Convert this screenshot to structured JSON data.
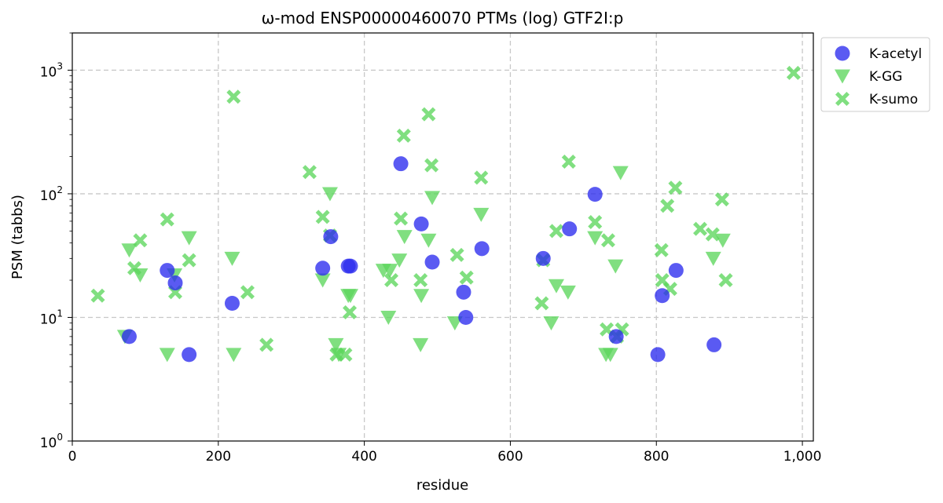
{
  "chart_data": {
    "type": "scatter",
    "title": "ω-mod ENSP00000460070 PTMs (log) GTF2I:p",
    "xlabel": "residue",
    "ylabel": "PSM (tabbs)",
    "xlim": [
      0,
      1015
    ],
    "ylim": [
      1,
      2000
    ],
    "yscale": "log",
    "grid": true,
    "legend_position": "outside-top-right",
    "x_ticks": [
      {
        "value": 0,
        "label": "0"
      },
      {
        "value": 200,
        "label": "200"
      },
      {
        "value": 400,
        "label": "400"
      },
      {
        "value": 600,
        "label": "600"
      },
      {
        "value": 800,
        "label": "800"
      },
      {
        "value": 1000,
        "label": "1,000"
      }
    ],
    "y_ticks": [
      {
        "value": 1,
        "base": "10",
        "exp": "0"
      },
      {
        "value": 10,
        "base": "10",
        "exp": "1"
      },
      {
        "value": 100,
        "base": "10",
        "exp": "2"
      },
      {
        "value": 1000,
        "base": "10",
        "exp": "3"
      }
    ],
    "series": [
      {
        "name": "K-acetyl",
        "marker": "circle",
        "color": "#2b2bee",
        "points": [
          [
            78,
            7
          ],
          [
            130,
            24
          ],
          [
            141,
            19
          ],
          [
            160,
            5
          ],
          [
            219,
            13
          ],
          [
            343,
            25
          ],
          [
            354,
            45
          ],
          [
            378,
            26
          ],
          [
            381,
            26
          ],
          [
            450,
            175
          ],
          [
            478,
            57
          ],
          [
            493,
            28
          ],
          [
            536,
            16
          ],
          [
            539,
            10
          ],
          [
            561,
            36
          ],
          [
            645,
            30
          ],
          [
            681,
            52
          ],
          [
            716,
            99
          ],
          [
            745,
            7
          ],
          [
            802,
            5
          ],
          [
            808,
            15
          ],
          [
            827,
            24
          ],
          [
            879,
            6
          ]
        ]
      },
      {
        "name": "K-GG",
        "marker": "triangle-down",
        "color": "#5cd65c",
        "points": [
          [
            72,
            7
          ],
          [
            78,
            35
          ],
          [
            93,
            22
          ],
          [
            130,
            5
          ],
          [
            140,
            22
          ],
          [
            160,
            44
          ],
          [
            219,
            30
          ],
          [
            221,
            5
          ],
          [
            343,
            20
          ],
          [
            353,
            100
          ],
          [
            361,
            6
          ],
          [
            365,
            5
          ],
          [
            378,
            15
          ],
          [
            381,
            15
          ],
          [
            426,
            24
          ],
          [
            433,
            10
          ],
          [
            435,
            24
          ],
          [
            448,
            29
          ],
          [
            455,
            45
          ],
          [
            477,
            6
          ],
          [
            478,
            15
          ],
          [
            488,
            42
          ],
          [
            493,
            93
          ],
          [
            524,
            9
          ],
          [
            560,
            68
          ],
          [
            656,
            9
          ],
          [
            663,
            18
          ],
          [
            679,
            16
          ],
          [
            716,
            44
          ],
          [
            731,
            5
          ],
          [
            737,
            5
          ],
          [
            744,
            26
          ],
          [
            751,
            148
          ],
          [
            878,
            30
          ],
          [
            891,
            42
          ]
        ]
      },
      {
        "name": "K-sumo",
        "marker": "x",
        "color": "#5cd65c",
        "points": [
          [
            35,
            15
          ],
          [
            85,
            25
          ],
          [
            93,
            42
          ],
          [
            130,
            62
          ],
          [
            141,
            16
          ],
          [
            160,
            29
          ],
          [
            221,
            610
          ],
          [
            240,
            16
          ],
          [
            266,
            6
          ],
          [
            325,
            150
          ],
          [
            343,
            65
          ],
          [
            353,
            46
          ],
          [
            362,
            5
          ],
          [
            374,
            5
          ],
          [
            380,
            11
          ],
          [
            437,
            20
          ],
          [
            450,
            63
          ],
          [
            454,
            295
          ],
          [
            477,
            20
          ],
          [
            488,
            440
          ],
          [
            492,
            170
          ],
          [
            527,
            32
          ],
          [
            540,
            21
          ],
          [
            560,
            135
          ],
          [
            643,
            13
          ],
          [
            645,
            29
          ],
          [
            663,
            50
          ],
          [
            680,
            182
          ],
          [
            716,
            59
          ],
          [
            734,
            42
          ],
          [
            732,
            8
          ],
          [
            746,
            7
          ],
          [
            753,
            8
          ],
          [
            807,
            35
          ],
          [
            808,
            20
          ],
          [
            815,
            80
          ],
          [
            819,
            17
          ],
          [
            826,
            112
          ],
          [
            860,
            52
          ],
          [
            877,
            47
          ],
          [
            890,
            90
          ],
          [
            895,
            20
          ],
          [
            988,
            950
          ]
        ]
      }
    ]
  }
}
